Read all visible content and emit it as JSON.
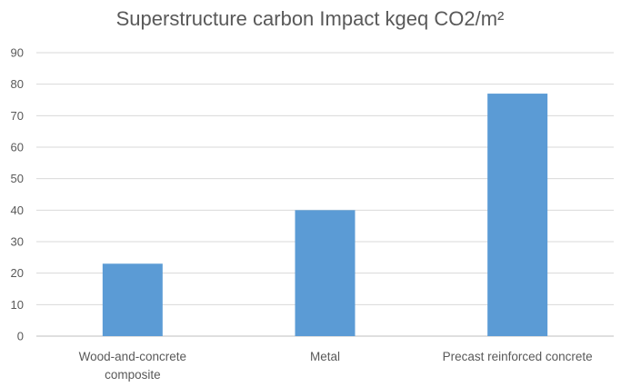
{
  "chart_data": {
    "type": "bar",
    "title": "Superstructure carbon Impact kgeq CO2/m²",
    "xlabel": "",
    "ylabel": "",
    "categories": [
      "Wood-and-concrete composite",
      "Metal",
      "Precast reinforced concrete"
    ],
    "category_lines": [
      [
        "Wood-and-concrete",
        "composite"
      ],
      [
        "Metal"
      ],
      [
        "Precast reinforced concrete"
      ]
    ],
    "values": [
      23,
      40,
      77
    ],
    "ylim": [
      0,
      90
    ],
    "yticks": [
      0,
      10,
      20,
      30,
      40,
      50,
      60,
      70,
      80,
      90
    ],
    "grid": true,
    "legend": "none",
    "bar_color": "#5b9bd5"
  }
}
